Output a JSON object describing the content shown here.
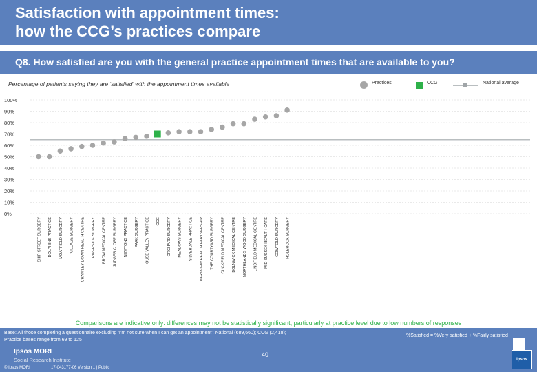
{
  "header": {
    "title_line1": "Satisfaction with appointment times:",
    "title_line2": "how the CCG’s practices compare"
  },
  "question": "Q8. How satisfied are you with the general practice appointment times that are available to you?",
  "subtitle": "Percentage of patients saying they are ‘satisfied’ with the appointment times available",
  "legend": {
    "practices": "Practices",
    "ccg": "CCG",
    "national": "National average"
  },
  "colors": {
    "header": "#5b80bd",
    "practice_marker": "#a6a6a6",
    "ccg_marker": "#2eb14a",
    "national_line": "#b9bec0",
    "note": "#2eb14a"
  },
  "chart_data": {
    "type": "scatter",
    "title": "Satisfaction with appointment times",
    "ylabel": "",
    "xlabel": "",
    "ylim": [
      0,
      100
    ],
    "y_ticks": [
      "0%",
      "10%",
      "20%",
      "30%",
      "40%",
      "50%",
      "60%",
      "70%",
      "80%",
      "90%",
      "100%"
    ],
    "categories": [
      "SHIP STREET SURGERY",
      "DOLPHINS PRACTICE",
      "MOATFIELD SURGERY",
      "VILLAGE SURGERY",
      "CRAWLEY DOWN HEALTH CENTRE",
      "RIVERSIDE SURGERY",
      "BROW MEDICAL CENTRE",
      "JUDGES CLOSE SURGERY",
      "NEWTONS PRACTICE",
      "PARK SURGERY",
      "OUSE VALLEY PRACTICE",
      "CCG",
      "ORCHARD SURGERY",
      "MEADOWS SURGERY",
      "SILVERDALE PRACTICE",
      "PARKVIEW HEALTH PARTNERSHIP",
      "THE COURTYARD SURGERY",
      "CUCKFIELD MEDICAL CENTRE",
      "BOLNWICK MEDICAL CENTRE",
      "NORTHLANDS WOOD SURGERY",
      "LINDFIELD MEDICAL CENTRE",
      "MID SUSSEX HEALTH CARE",
      "COWFOLD SURGERY",
      "HOLBROOK SURGERY"
    ],
    "values": [
      50,
      50,
      55,
      57,
      59,
      60,
      62,
      63,
      66,
      67,
      68,
      70,
      71,
      72,
      72,
      72,
      74,
      76,
      79,
      79,
      83,
      85,
      86,
      91
    ],
    "ccg_index": 11,
    "ccg_value": 70,
    "national_average": 65
  },
  "note": "Comparisons are indicative only: differences may not be statistically significant, particularly at practice level due to low numbers of responses",
  "footer": {
    "base_line1": "Base: All those completing a questionnaire excluding ‘I’m not sure when I can get an appointment’: National (689,660); CCG (2,418);",
    "base_line2": "Practice bases range from 69 to 125",
    "satisfied_def": "%Satisfied = %Very satisfied + %Fairly satisfied",
    "logo_name": "Ipsos MORI",
    "logo_sub": "Social Research Institute",
    "copyright": "© Ipsos MORI",
    "version": "17-043177-06 Version 1 | Public",
    "page": "40",
    "brand": "Ipsos"
  }
}
